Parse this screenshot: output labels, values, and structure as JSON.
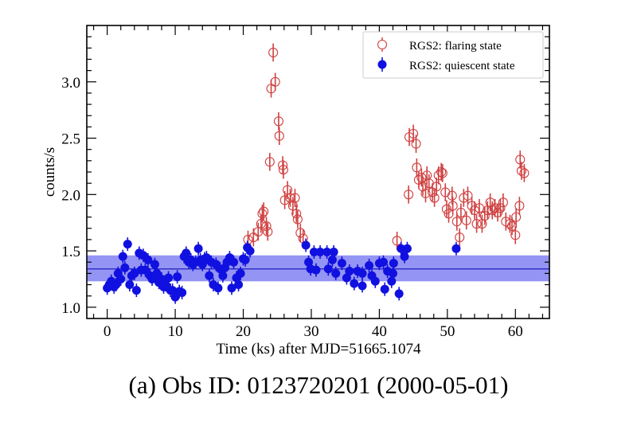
{
  "chart_data": {
    "type": "scatter",
    "title": "",
    "caption": "(a) Obs ID: 0123720201 (2000-05-01)",
    "xlabel": "Time (ks) after MJD=51665.1074",
    "ylabel": "counts/s",
    "xlim": [
      -3,
      65
    ],
    "ylim": [
      0.9,
      3.5
    ],
    "xticks": [
      0,
      10,
      20,
      30,
      40,
      50,
      60
    ],
    "yticks": [
      1.0,
      1.5,
      2.0,
      2.5,
      3.0
    ],
    "ytick_labels": [
      "1.0",
      "1.5",
      "2.0",
      "2.5",
      "3.0"
    ],
    "grid": false,
    "legend_position": "top-right",
    "band": {
      "center": 1.34,
      "low": 1.23,
      "high": 1.46,
      "color": "#7070f0"
    },
    "series": [
      {
        "name": "RGS2: flaring state",
        "marker": "open-circle",
        "color": "#d04040",
        "yerr": 0.08,
        "x": [
          20.7,
          21.5,
          22.2,
          22.6,
          22.8,
          23.0,
          23.4,
          23.6,
          23.9,
          24.1,
          24.4,
          24.7,
          25.2,
          25.3,
          25.8,
          25.9,
          26.1,
          26.5,
          26.9,
          27.3,
          27.6,
          27.8,
          28.0,
          28.4,
          28.8,
          42.6,
          44.3,
          44.4,
          45.0,
          45.4,
          45.5,
          45.8,
          46.2,
          46.4,
          46.8,
          47.0,
          47.3,
          47.8,
          48.1,
          48.4,
          48.7,
          49.1,
          49.3,
          49.7,
          49.9,
          50.2,
          50.7,
          50.8,
          51.4,
          51.8,
          52.0,
          52.4,
          52.8,
          53.0,
          53.6,
          54.0,
          54.3,
          54.7,
          55.1,
          55.5,
          55.9,
          56.3,
          56.6,
          57.0,
          57.4,
          57.8,
          58.2,
          58.6,
          59.2,
          59.5,
          60.0,
          60.1,
          60.6,
          60.7,
          60.9,
          61.3
        ],
        "y": [
          1.6,
          1.62,
          1.67,
          1.74,
          1.83,
          1.85,
          1.72,
          1.67,
          2.29,
          2.94,
          3.26,
          3.0,
          2.65,
          2.52,
          2.26,
          2.22,
          1.95,
          2.04,
          1.97,
          1.9,
          1.97,
          1.83,
          1.78,
          1.66,
          1.61,
          1.59,
          2.0,
          2.51,
          2.54,
          2.45,
          2.24,
          2.13,
          2.15,
          2.07,
          2.01,
          2.17,
          2.1,
          2.02,
          1.97,
          2.07,
          2.17,
          2.2,
          2.19,
          2.02,
          1.87,
          1.83,
          1.99,
          1.9,
          1.76,
          1.62,
          1.84,
          1.97,
          1.77,
          1.99,
          1.9,
          1.86,
          1.74,
          1.88,
          1.74,
          1.81,
          1.86,
          1.93,
          1.86,
          1.88,
          1.84,
          1.88,
          1.93,
          1.76,
          1.74,
          1.72,
          1.64,
          1.8,
          1.9,
          2.31,
          2.21,
          2.19
        ]
      },
      {
        "name": "RGS2: quiescent state",
        "marker": "filled-circle",
        "color": "#1010e0",
        "yerr": 0.06,
        "x": [
          0,
          0.3,
          0.6,
          1.0,
          1.3,
          1.6,
          2.0,
          2.3,
          2.6,
          3.0,
          3.3,
          3.6,
          4.0,
          4.3,
          4.7,
          5.0,
          5.3,
          5.6,
          6.0,
          6.3,
          6.6,
          7.0,
          7.3,
          7.6,
          8.0,
          8.3,
          8.6,
          9.0,
          9.3,
          9.6,
          10.0,
          10.3,
          10.6,
          11.0,
          11.3,
          11.6,
          12.0,
          12.3,
          12.6,
          13.0,
          13.4,
          13.7,
          14.0,
          14.3,
          14.6,
          15.0,
          15.3,
          15.6,
          16.0,
          16.3,
          16.6,
          17.0,
          17.3,
          17.6,
          18.0,
          18.3,
          18.6,
          19.0,
          19.3,
          19.6,
          20.0,
          20.3,
          20.6,
          21.0,
          29.2,
          29.6,
          29.9,
          30.4,
          30.7,
          31.3,
          32.3,
          32.5,
          33.1,
          33.3,
          33.6,
          34.5,
          35.2,
          35.6,
          36.3,
          36.8,
          37.5,
          37.5,
          38.5,
          38.9,
          39.4,
          40.0,
          40.6,
          40.8,
          41.2,
          41.8,
          42.0,
          42.1,
          42.9,
          43.2,
          43.7,
          44.1,
          51.3
        ],
        "y": [
          1.17,
          1.2,
          1.23,
          1.18,
          1.2,
          1.3,
          1.25,
          1.45,
          1.35,
          1.56,
          1.2,
          1.28,
          1.3,
          1.15,
          1.48,
          1.33,
          1.46,
          1.33,
          1.42,
          1.28,
          1.25,
          1.38,
          1.3,
          1.22,
          1.25,
          1.18,
          1.2,
          1.26,
          1.15,
          1.15,
          1.09,
          1.27,
          1.14,
          1.13,
          1.45,
          1.48,
          1.4,
          1.42,
          1.38,
          1.4,
          1.52,
          1.42,
          1.38,
          1.43,
          1.44,
          1.28,
          1.4,
          1.2,
          1.38,
          1.17,
          1.34,
          1.28,
          1.35,
          1.4,
          1.44,
          1.17,
          1.4,
          1.26,
          1.2,
          1.3,
          1.43,
          1.42,
          1.53,
          1.5,
          1.55,
          1.4,
          1.34,
          1.49,
          1.33,
          1.49,
          1.49,
          1.34,
          1.42,
          1.49,
          1.3,
          1.39,
          1.26,
          1.32,
          1.21,
          1.32,
          1.19,
          1.3,
          1.37,
          1.28,
          1.23,
          1.39,
          1.4,
          1.16,
          1.32,
          1.23,
          1.3,
          1.39,
          1.12,
          1.52,
          1.45,
          1.52,
          1.52
        ]
      }
    ]
  }
}
